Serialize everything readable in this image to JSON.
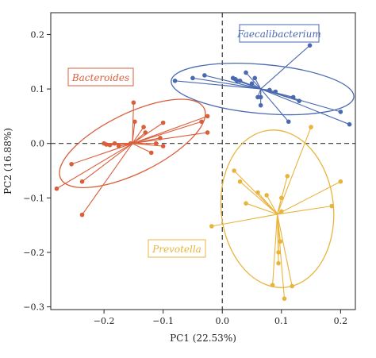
{
  "chart_data": {
    "type": "scatter",
    "xlabel": "PC1 (22.53%)",
    "ylabel": "PC2 (16.88%)",
    "xlim": [
      -0.29,
      0.225
    ],
    "ylim": [
      -0.305,
      0.24
    ],
    "xticks": [
      -0.2,
      -0.1,
      0.0,
      0.1,
      0.2
    ],
    "xtick_labels": [
      "−0.2",
      "−0.1",
      "0.0",
      "0.1",
      "0.2"
    ],
    "yticks": [
      -0.3,
      -0.2,
      -0.1,
      0.0,
      0.1,
      0.2
    ],
    "ytick_labels": [
      "−0.3",
      "−0.2",
      "−0.1",
      "0.0",
      "0.1",
      "0.2"
    ],
    "grid": false,
    "reference_lines": {
      "x": 0.0,
      "y": 0.0,
      "style": "dashed"
    },
    "series": [
      {
        "name": "Bacteroides",
        "color": "#d95f3b",
        "centroid": [
          -0.152,
          0.0
        ],
        "ellipse": {
          "center": [
            -0.152,
            0.0
          ],
          "rx": 0.135,
          "ry": 0.055,
          "angle_deg": 26
        },
        "points": [
          [
            -0.28,
            -0.083
          ],
          [
            -0.255,
            -0.038
          ],
          [
            -0.237,
            -0.07
          ],
          [
            -0.237,
            -0.131
          ],
          [
            -0.2,
            0.0
          ],
          [
            -0.196,
            -0.002
          ],
          [
            -0.19,
            -0.003
          ],
          [
            -0.182,
            0.0
          ],
          [
            -0.175,
            -0.005
          ],
          [
            -0.155,
            0.0
          ],
          [
            -0.15,
            0.075
          ],
          [
            -0.148,
            0.04
          ],
          [
            -0.133,
            0.03
          ],
          [
            -0.13,
            0.02
          ],
          [
            -0.12,
            -0.017
          ],
          [
            -0.112,
            0.0
          ],
          [
            -0.105,
            0.01
          ],
          [
            -0.1,
            0.038
          ],
          [
            -0.1,
            -0.005
          ],
          [
            -0.035,
            0.04
          ],
          [
            -0.025,
            0.05
          ],
          [
            -0.025,
            0.02
          ]
        ]
      },
      {
        "name": "Faecalibacterium",
        "color": "#4a69b0",
        "centroid": [
          0.065,
          0.1
        ],
        "ellipse": {
          "center": [
            0.068,
            0.1
          ],
          "rx": 0.155,
          "ry": 0.045,
          "angle_deg": -5
        },
        "points": [
          [
            -0.08,
            0.115
          ],
          [
            -0.05,
            0.12
          ],
          [
            -0.03,
            0.125
          ],
          [
            0.018,
            0.12
          ],
          [
            0.022,
            0.118
          ],
          [
            0.025,
            0.115
          ],
          [
            0.03,
            0.115
          ],
          [
            0.04,
            0.13
          ],
          [
            0.05,
            0.11
          ],
          [
            0.055,
            0.12
          ],
          [
            0.06,
            0.085
          ],
          [
            0.065,
            0.085
          ],
          [
            0.065,
            0.07
          ],
          [
            0.08,
            0.098
          ],
          [
            0.09,
            0.095
          ],
          [
            0.112,
            0.04
          ],
          [
            0.12,
            0.085
          ],
          [
            0.13,
            0.078
          ],
          [
            0.148,
            0.18
          ],
          [
            0.2,
            0.058
          ],
          [
            0.215,
            0.035
          ]
        ]
      },
      {
        "name": "Prevotella",
        "color": "#e8b43c",
        "centroid": [
          0.093,
          -0.13
        ],
        "ellipse": {
          "center": [
            0.093,
            -0.12
          ],
          "rx": 0.095,
          "ry": 0.145,
          "angle_deg": 6
        },
        "points": [
          [
            -0.018,
            -0.152
          ],
          [
            0.02,
            -0.05
          ],
          [
            0.03,
            -0.07
          ],
          [
            0.04,
            -0.11
          ],
          [
            0.06,
            -0.09
          ],
          [
            0.075,
            -0.095
          ],
          [
            0.085,
            -0.26
          ],
          [
            0.095,
            -0.22
          ],
          [
            0.095,
            -0.2
          ],
          [
            0.098,
            -0.18
          ],
          [
            0.1,
            -0.125
          ],
          [
            0.1,
            -0.1
          ],
          [
            0.105,
            -0.285
          ],
          [
            0.11,
            -0.06
          ],
          [
            0.118,
            -0.262
          ],
          [
            0.15,
            0.03
          ],
          [
            0.185,
            -0.115
          ],
          [
            0.2,
            -0.07
          ]
        ]
      }
    ]
  },
  "labels": {
    "bacteroides": "Bacteroides",
    "faecalibacterium": "Faecalibacterium",
    "prevotella": "Prevotella"
  }
}
